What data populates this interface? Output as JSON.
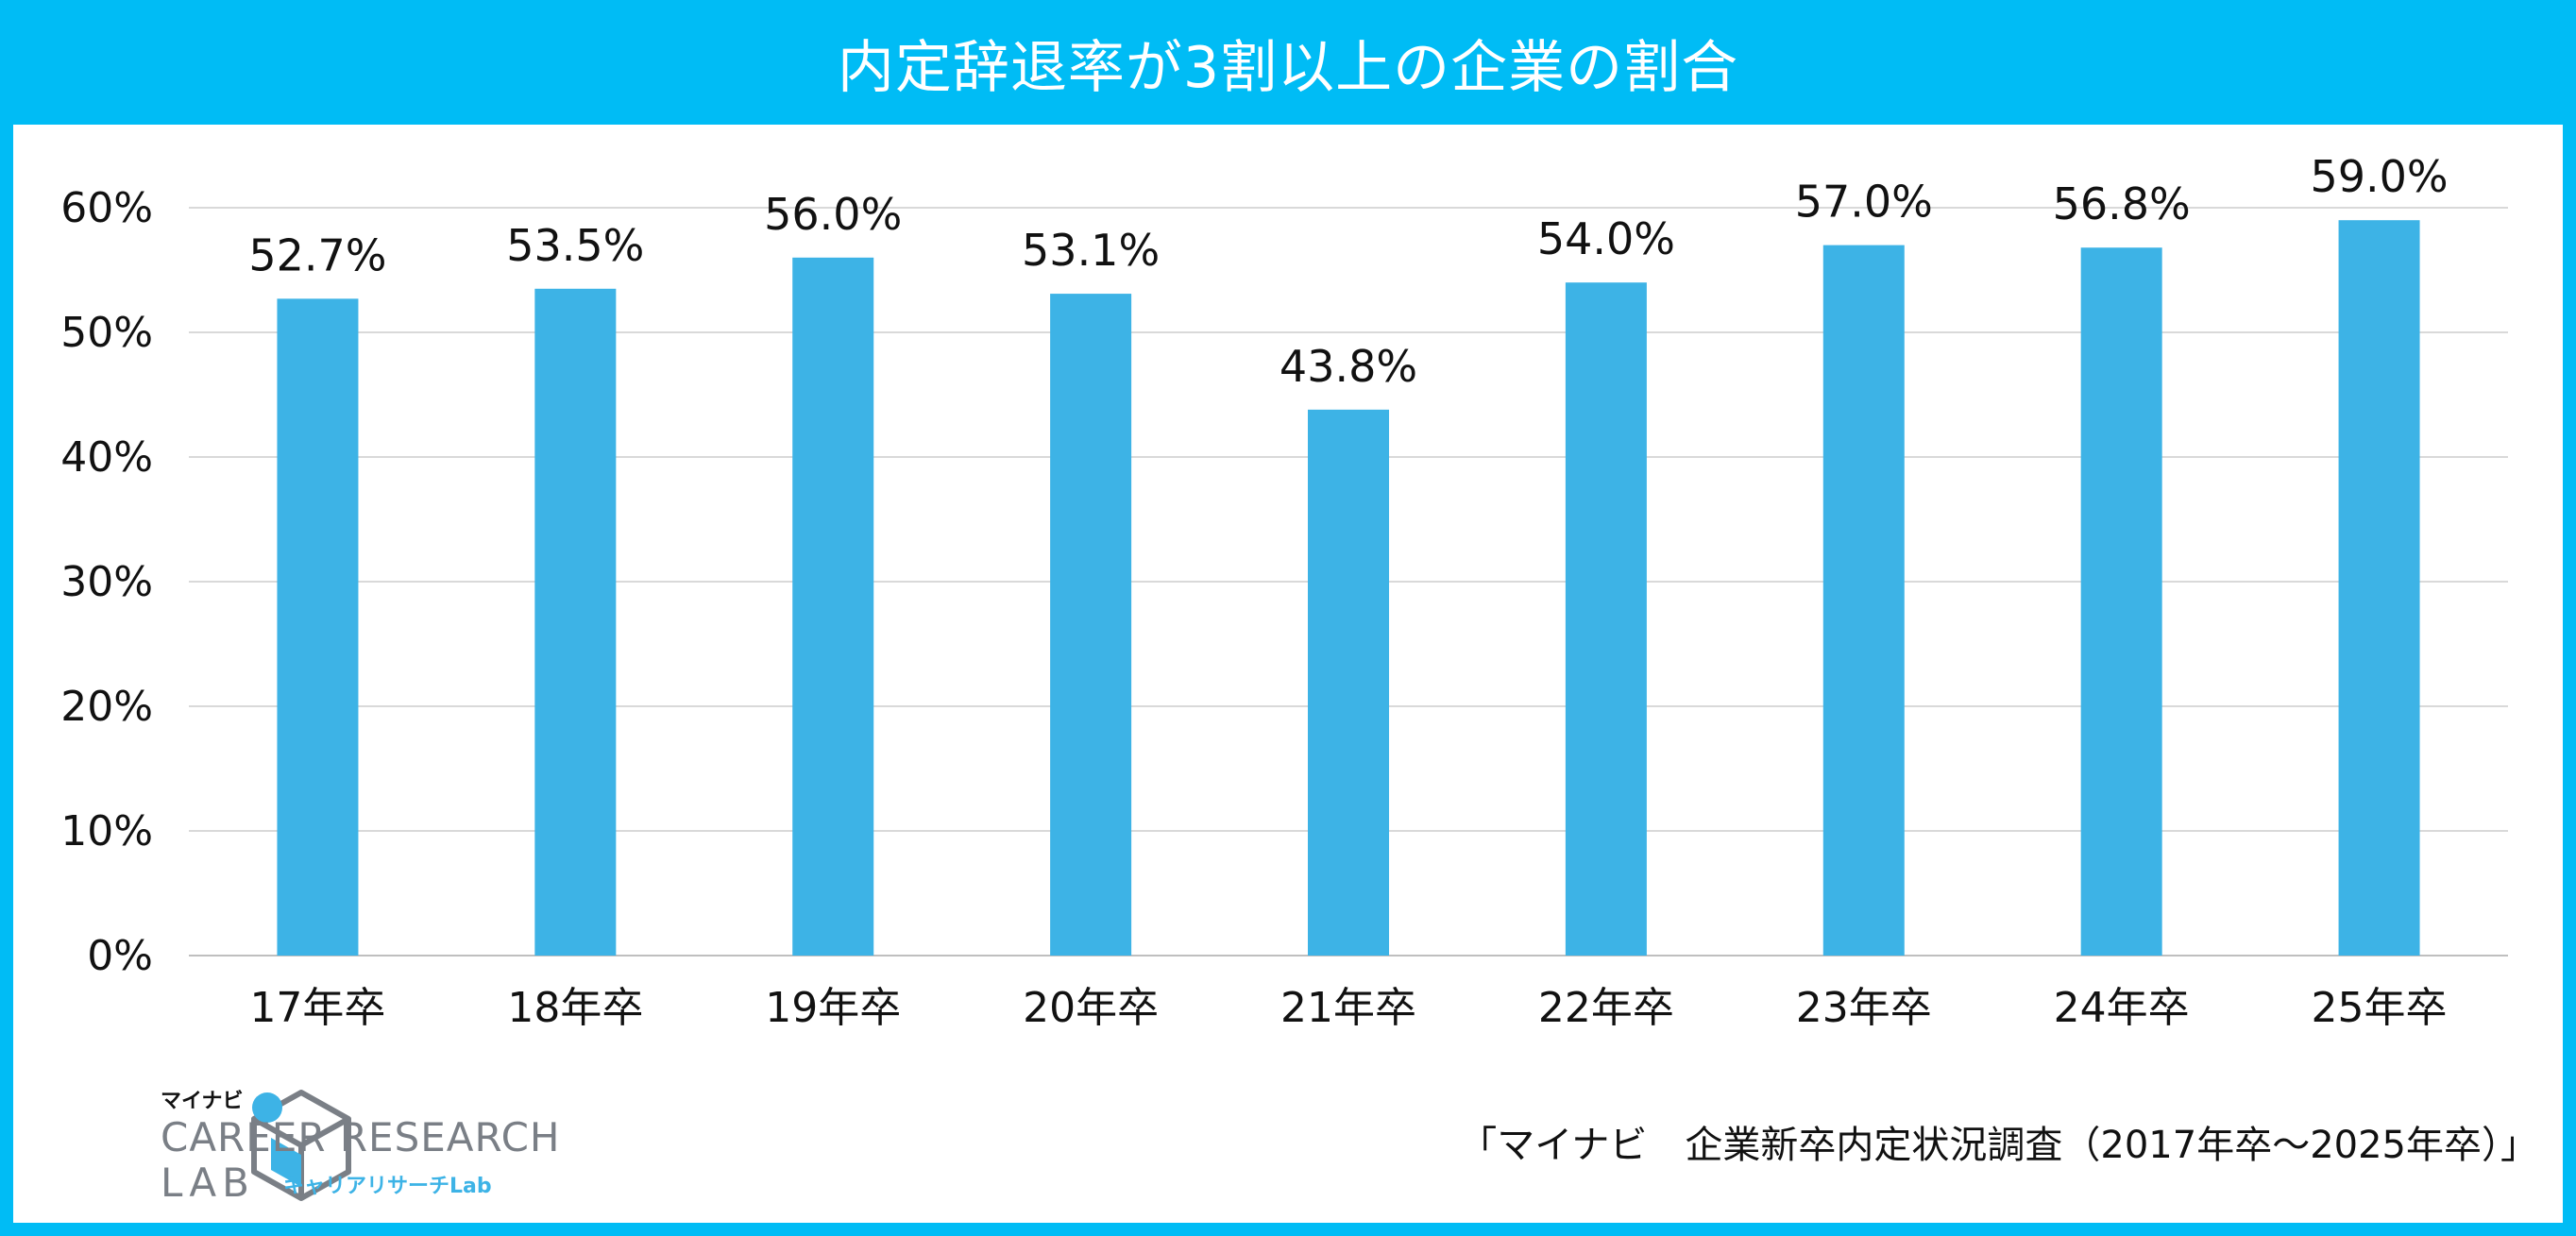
{
  "title": "内定辞退率が3割以上の企業の割合",
  "source": "「マイナビ　企業新卒内定状況調査（2017年卒～2025年卒）」",
  "logo": {
    "brand": "マイナビ",
    "line1": "CAREER RESEARCH",
    "line2": "LAB",
    "tag": "キャリアリサーチLab"
  },
  "colors": {
    "bar": "#3db3e6",
    "frame": "#00bcf5",
    "grid": "#d9d9d9"
  },
  "chart_data": {
    "type": "bar",
    "categories": [
      "17年卒",
      "18年卒",
      "19年卒",
      "20年卒",
      "21年卒",
      "22年卒",
      "23年卒",
      "24年卒",
      "25年卒"
    ],
    "values": [
      52.7,
      53.5,
      56.0,
      53.1,
      43.8,
      54.0,
      57.0,
      56.8,
      59.0
    ],
    "value_labels": [
      "52.7%",
      "53.5%",
      "56.0%",
      "53.1%",
      "43.8%",
      "54.0%",
      "57.0%",
      "56.8%",
      "59.0%"
    ],
    "ylim": [
      0,
      60
    ],
    "yticks": [
      0,
      10,
      20,
      30,
      40,
      50,
      60
    ],
    "ytick_labels": [
      "0%",
      "10%",
      "20%",
      "30%",
      "40%",
      "50%",
      "60%"
    ],
    "grid": true,
    "legend": "none"
  }
}
